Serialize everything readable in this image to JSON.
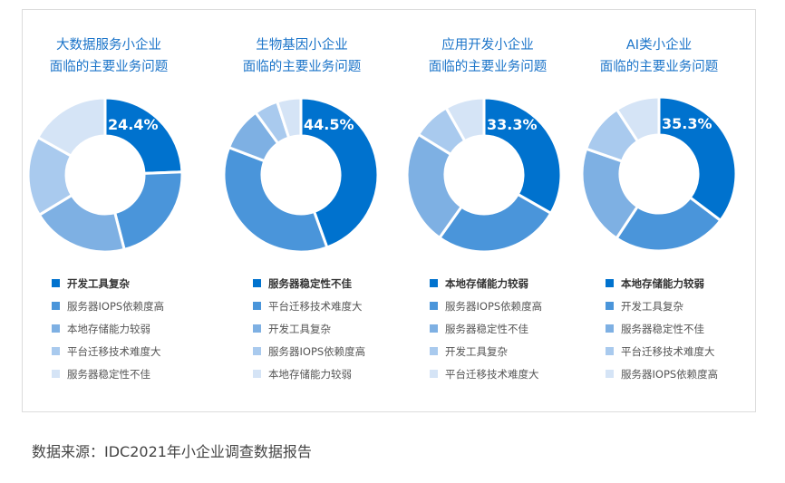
{
  "colors": [
    "#0072CE",
    "#4A95DA",
    "#7EB0E3",
    "#A9CAEE",
    "#D5E4F6"
  ],
  "chart_data": [
    {
      "type": "pie",
      "donut": true,
      "title": "大数据服务小企业\n面临的主要业务问题",
      "title_lines": [
        "大数据服务小企业",
        "面临的主要业务问题"
      ],
      "label": "24.4%",
      "categories": [
        "开发工具复杂",
        "服务器IOPS依赖度高",
        "本地存储能力较弱",
        "平台迁移技术难度大",
        "服务器稳定性不佳"
      ],
      "values": [
        24.4,
        21.6,
        20.3,
        16.8,
        16.9
      ],
      "legend": "bottom"
    },
    {
      "type": "pie",
      "donut": true,
      "title": "生物基因小企业\n面临的主要业务问题",
      "title_lines": [
        "生物基因小企业",
        "面临的主要业务问题"
      ],
      "label": "44.5%",
      "categories": [
        "服务器稳定性不佳",
        "平台迁移技术难度大",
        "开发工具复杂",
        "服务器IOPS依赖度高",
        "本地存储能力较弱"
      ],
      "values": [
        44.5,
        36.3,
        9.2,
        5.0,
        5.0
      ],
      "legend": "bottom"
    },
    {
      "type": "pie",
      "donut": true,
      "title": "应用开发小企业\n面临的主要业务问题",
      "title_lines": [
        "应用开发小企业",
        "面临的主要业务问题"
      ],
      "label": "33.3%",
      "categories": [
        "本地存储能力较弱",
        "服务器IOPS依赖度高",
        "服务器稳定性不佳",
        "开发工具复杂",
        "平台迁移技术难度大"
      ],
      "values": [
        33.3,
        26.5,
        24.0,
        8.0,
        8.2
      ],
      "legend": "bottom"
    },
    {
      "type": "pie",
      "donut": true,
      "title": "AI类小企业\n面临的主要业务问题",
      "title_lines": [
        "AI类小企业",
        "面临的主要业务问题"
      ],
      "label": "35.3%",
      "categories": [
        "本地存储能力较弱",
        "开发工具复杂",
        "服务器稳定性不佳",
        "平台迁移技术难度大",
        "服务器IOPS依赖度高"
      ],
      "values": [
        35.3,
        24.0,
        21.0,
        10.5,
        9.2
      ],
      "legend": "bottom"
    }
  ],
  "source": "数据来源：IDC2021年小企业调查数据报告"
}
